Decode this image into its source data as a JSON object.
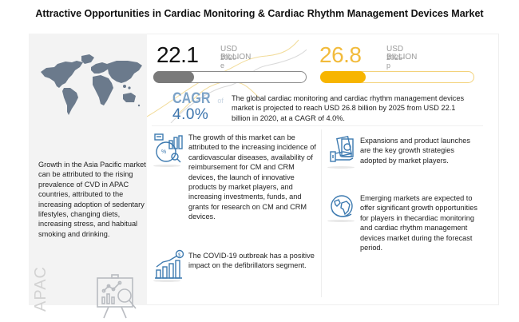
{
  "title": "Attractive Opportunities in Cardiac Monitoring & Cardiac Rhythm Management Devices Market",
  "colors": {
    "accent_gray": "#7a7a7a",
    "accent_yellow": "#f7b500",
    "cagr_blue": "#3b74ad",
    "icon_blue": "#3d7ab0",
    "panel_bg": "#f3f3f3",
    "map_fill": "#6b7a8c"
  },
  "stats": [
    {
      "value": "22.1",
      "unit": "USD BILLION",
      "year": "2020-e",
      "progress": 0.27
    },
    {
      "value": "26.8",
      "unit": "USD BILLION",
      "year": "2025-p",
      "progress": 0.3
    }
  ],
  "cagr": {
    "label": "CAGR",
    "of": "of",
    "value": "4.0%"
  },
  "summary": "The global cardiac monitoring and cardiac rhythm management devices market is projected to reach USD 26.8 billion by 2025 from USD 22.1 billion in 2020, at a CAGR of 4.0%.",
  "apac": {
    "icon": "world-map-icon",
    "text": "Growth in the Asia Pacific market can be attributed to the rising prevalence of CVD in APAC countries, attributed to the increasing adoption of sedentary lifestyles, changing diets, increasing stress, and habitual smoking and drinking.",
    "label": "APAC",
    "bottom_icon": "presentation-analytics-icon"
  },
  "cards": [
    {
      "icon": "market-analysis-icon",
      "text": "The growth of this market can be attributed to the increasing incidence of cardiovascular diseases, availability of reimbursement for CM and CRM devices, the launch of innovative products by market players, and increasing investments, funds, and grants for research on CM and CRM devices."
    },
    {
      "icon": "growth-chart-dollar-icon",
      "text": "The COVID-19 outbreak has a positive impact on the defibrillators segment."
    },
    {
      "icon": "money-hand-icon",
      "text": "Expansions and product launches are the key growth strategies adopted by market players."
    },
    {
      "icon": "globe-icon",
      "text": "Emerging markets are expected to offer significant growth opportunities for players in thecardiac monitoring and cardiac rhythm management devices market during the forecast period."
    }
  ]
}
